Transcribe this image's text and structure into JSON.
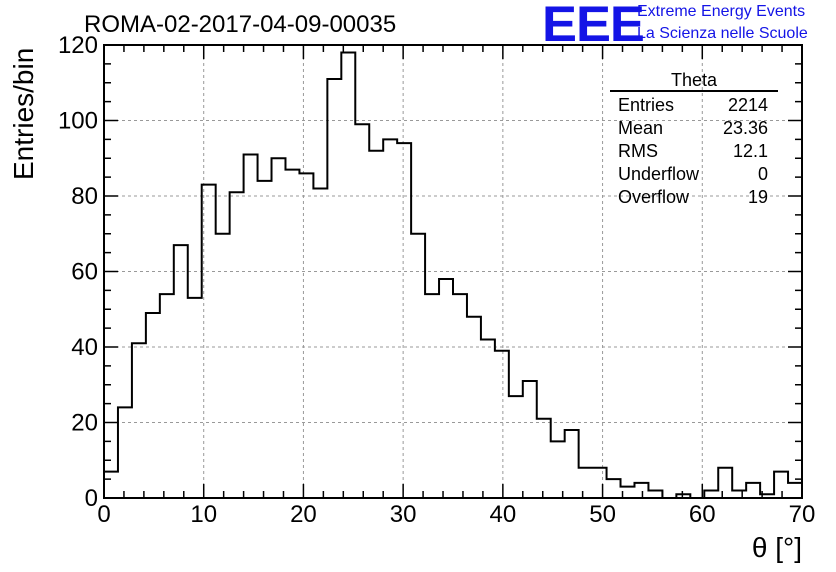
{
  "title": "ROMA-02-2017-04-09-00035",
  "logo": {
    "text": "EEE",
    "line1": "Extreme Energy Events",
    "line2": "La Scienza nelle Scuole",
    "color": "#1414e6"
  },
  "stats": {
    "title": "Theta",
    "rows": [
      {
        "label": "Entries",
        "value": "2214"
      },
      {
        "label": "Mean",
        "value": "23.36"
      },
      {
        "label": "RMS",
        "value": "12.1"
      },
      {
        "label": "Underflow",
        "value": "0"
      },
      {
        "label": "Overflow",
        "value": "19"
      }
    ]
  },
  "chart_data": {
    "type": "bar",
    "histogram": true,
    "title": "ROMA-02-2017-04-09-00035",
    "xlabel": "θ [°]",
    "ylabel": "Entries/bin",
    "xlim": [
      0,
      70
    ],
    "ylim": [
      0,
      120
    ],
    "xticks": [
      0,
      10,
      20,
      30,
      40,
      50,
      60,
      70
    ],
    "yticks": [
      0,
      20,
      40,
      60,
      80,
      100,
      120
    ],
    "grid": true,
    "bin_width": 1.4,
    "bin_edges_start": 0,
    "values": [
      7,
      24,
      41,
      49,
      54,
      67,
      53,
      83,
      70,
      81,
      91,
      84,
      90,
      87,
      86,
      82,
      111,
      118,
      99,
      92,
      95,
      94,
      70,
      54,
      58,
      54,
      48,
      42,
      39,
      27,
      31,
      21,
      15,
      18,
      8,
      8,
      5,
      3,
      4,
      2,
      0,
      1,
      0,
      2,
      8,
      2,
      4,
      1,
      7,
      4
    ],
    "line_color": "#000000"
  }
}
